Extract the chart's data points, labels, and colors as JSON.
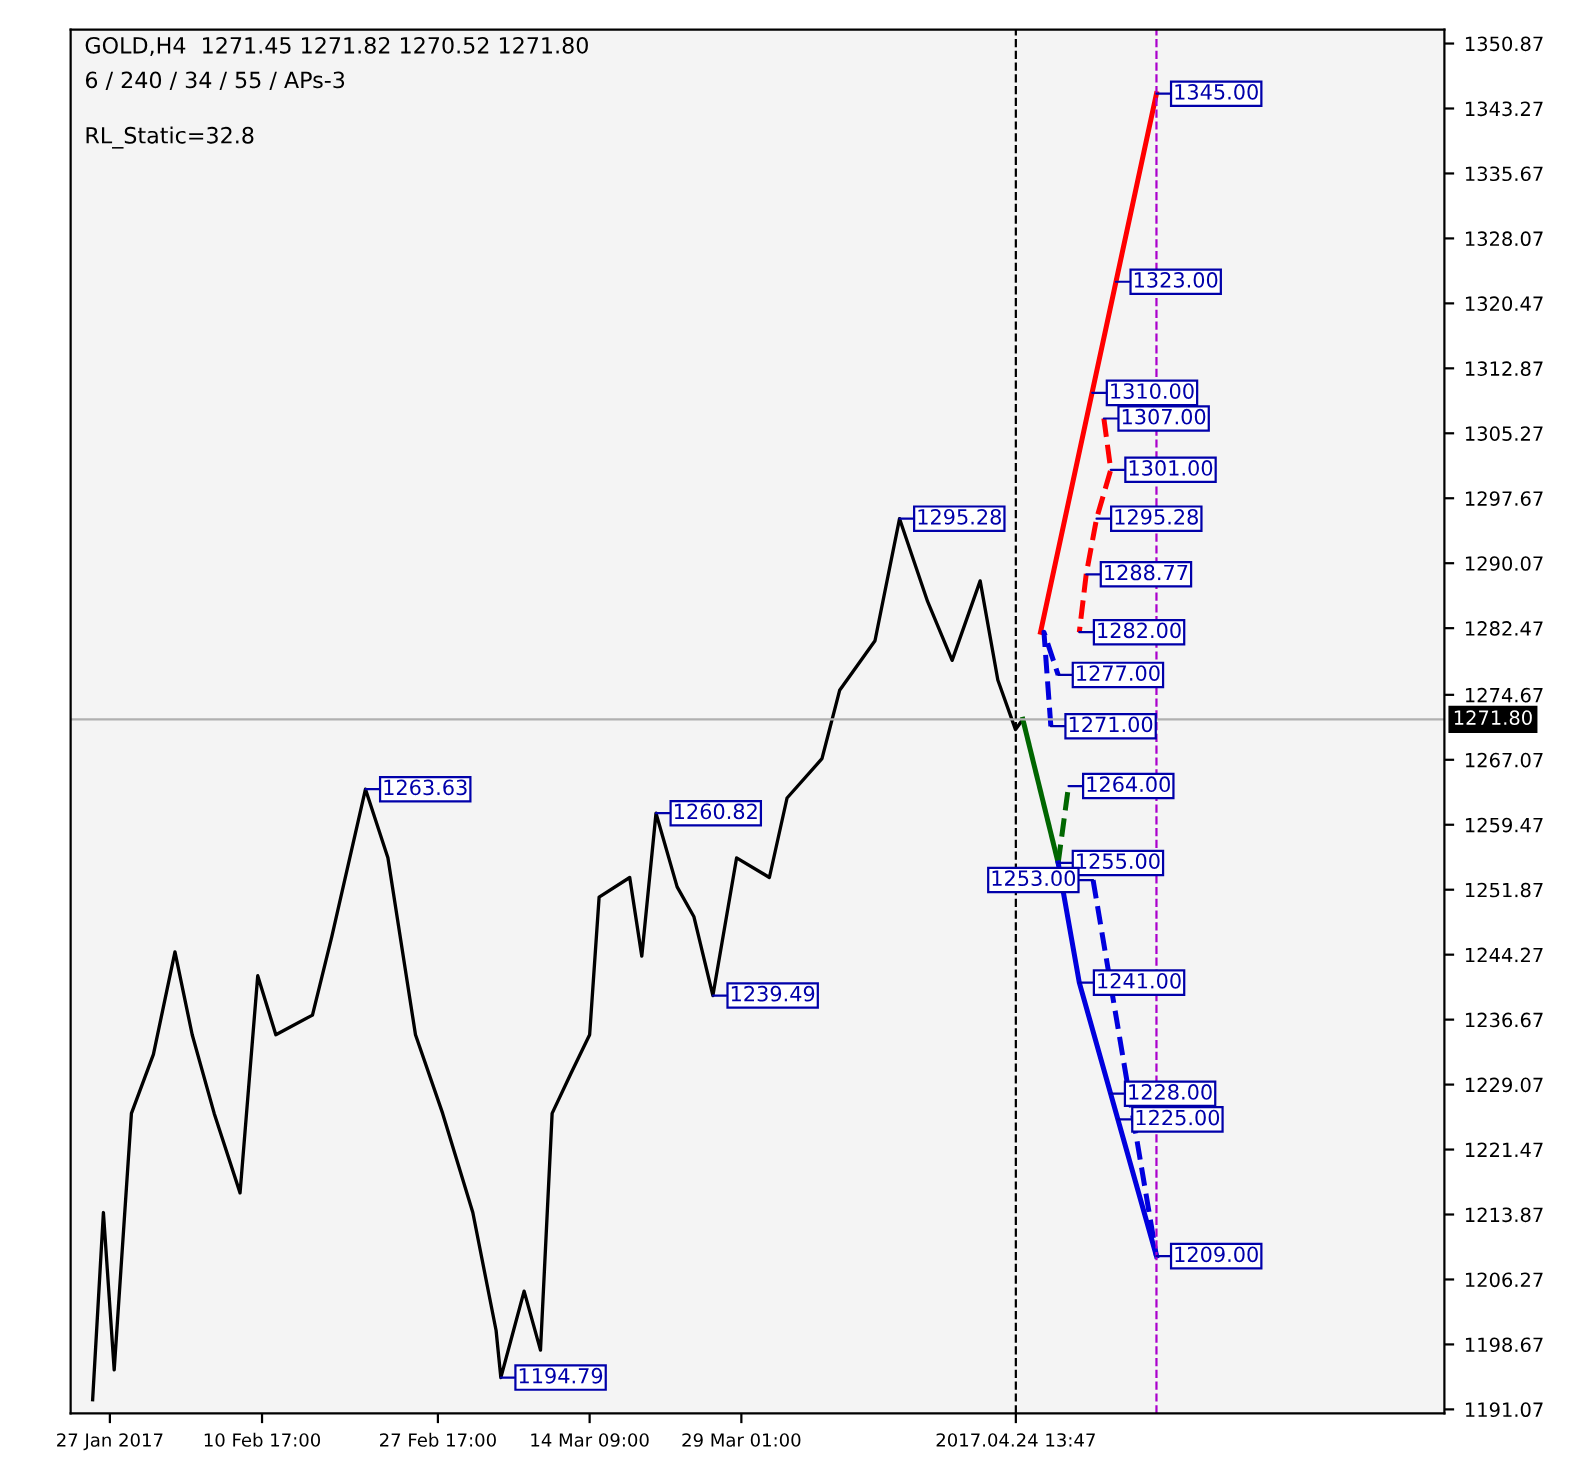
{
  "chart_data": {
    "type": "line",
    "title": "GOLD,H4  1271.45 1271.82 1270.52 1271.80",
    "subtitle": "6 / 240 / 34 / 55 / APs-3",
    "x": [
      "2017-01-25T08:00",
      "2017-01-26T09:00",
      "2017-01-27T10:00",
      "2017-01-29T02:00",
      "2017-01-31T05:00",
      "2017-02-02T07:00",
      "2017-02-03T23:00",
      "2017-02-06T02:00",
      "2017-02-08T14:00",
      "2017-02-10T07:00",
      "2017-02-12T01:00",
      "2017-02-15T14:00",
      "2017-02-17T11:00",
      "2017-02-20T17:00",
      "2017-02-22T21:00",
      "2017-02-25T13:00",
      "2017-02-28T04:00",
      "2017-03-03T02:00",
      "2017-03-05T08:00",
      "2017-03-05T19:00",
      "2017-03-08T01:00",
      "2017-03-09T15:00",
      "2017-03-10T18:00",
      "2017-03-12T13:00",
      "2017-03-14T09:00",
      "2017-03-15T07:00",
      "2017-03-18T06:00",
      "2017-03-19T10:00",
      "2017-03-20T19:00",
      "2017-03-22T20:00",
      "2017-03-24T11:00",
      "2017-03-26T07:00",
      "2017-03-28T14:00",
      "2017-03-31T18:00",
      "2017-04-02T11:00",
      "2017-04-05T20:00",
      "2017-04-07T13:00",
      "2017-04-10T23:00",
      "2017-04-13T08:00",
      "2017-04-16T01:00",
      "2017-04-18T10:00",
      "2017-04-21T03:00",
      "2017-04-22T20:00",
      "2017-04-24T13:00",
      "2017-04-25T06:00"
    ],
    "series": [
      {
        "color": "#000000",
        "values": [
          1192.2,
          1214.1,
          1195.7,
          1225.7,
          1232.6,
          1244.6,
          1234.9,
          1225.7,
          1216.4,
          1241.8,
          1234.9,
          1237.2,
          1246.4,
          1263.63,
          1255.6,
          1234.9,
          1225.7,
          1214.1,
          1200.3,
          1194.79,
          1204.9,
          1198.0,
          1225.7,
          1230.3,
          1234.9,
          1251.0,
          1253.3,
          1244.1,
          1260.82,
          1252.2,
          1248.7,
          1239.49,
          1255.6,
          1253.3,
          1262.6,
          1267.2,
          1275.2,
          1281.0,
          1295.28,
          1285.6,
          1278.7,
          1288.0,
          1276.4,
          1270.6,
          1271.8
        ]
      },
      {
        "color": "#ff0000",
        "x": [
          "2017-04-26T23:00",
          "2017-05-08T04:00"
        ],
        "values": [
          1282.0,
          1345.0
        ]
      },
      {
        "color": "#ff0000",
        "x": [
          "2017-05-03T02:00",
          "2017-05-03T18:00",
          "2017-05-02T09:00",
          "2017-05-01T09:00",
          "2017-04-30T17:00"
        ],
        "values": [
          1307.0,
          1301.0,
          1295.28,
          1288.77,
          1282.0
        ],
        "line_style": "dashed"
      },
      {
        "color": "#0000dd",
        "x": [
          "2017-04-27T23:00",
          "2017-04-27T07:00",
          "2017-04-28T16:00"
        ],
        "values": [
          1271.0,
          1282.0,
          1277.0
        ],
        "line_style": "dashed"
      },
      {
        "color": "#006600",
        "x": [
          "2017-04-25T06:00",
          "2017-04-28T16:00"
        ],
        "values": [
          1271.8,
          1255.0
        ]
      },
      {
        "color": "#006600",
        "x": [
          "2017-04-28T16:00",
          "2017-04-29T16:00"
        ],
        "values": [
          1255.0,
          1264.0
        ],
        "line_style": "dashed"
      },
      {
        "color": "#0000dd",
        "x": [
          "2017-04-28T16:00",
          "2017-04-30T17:00",
          "2017-05-08T04:00"
        ],
        "values": [
          1255.0,
          1241.0,
          1209.0
        ]
      },
      {
        "color": "#0000dd",
        "x": [
          "2017-05-02T01:00",
          "2017-05-08T04:00"
        ],
        "values": [
          1253.0,
          1209.0
        ],
        "line_style": "dashed"
      }
    ],
    "xlim": [
      "2017-01-23T05:00",
      "2017-06-05T00:00"
    ],
    "xticks": [
      {
        "value": "2017-01-27T00:00",
        "label": "27 Jan 2017"
      },
      {
        "value": "2017-02-10T17:00",
        "label": "10 Feb 17:00"
      },
      {
        "value": "2017-02-27T17:00",
        "label": "27 Feb 17:00"
      },
      {
        "value": "2017-03-14T09:00",
        "label": "14 Mar 09:00"
      },
      {
        "value": "2017-03-29T01:00",
        "label": "29 Mar 01:00"
      },
      {
        "value": "2017-04-24T13:47",
        "label": "2017.04.24 13:47"
      }
    ],
    "ylim": [
      1190.6,
      1352.5
    ],
    "yticks": [
      1191.07,
      1198.67,
      1206.27,
      1213.87,
      1221.47,
      1229.07,
      1236.67,
      1244.27,
      1251.87,
      1259.47,
      1267.07,
      1274.67,
      1282.47,
      1290.07,
      1297.67,
      1305.27,
      1312.87,
      1320.47,
      1328.07,
      1335.67,
      1343.27,
      1350.87
    ],
    "ref_lines": [
      {
        "axis": "y",
        "value": 1271.8,
        "label": "1271.80",
        "color": "#b0b0b0",
        "line_style": "solid"
      },
      {
        "axis": "x",
        "value": "2017-04-24T13:47",
        "color": "#000000",
        "line_style": "dashed"
      },
      {
        "axis": "x",
        "value": "2017-05-08T04:00",
        "color": "#aa00cc",
        "line_style": "dashed"
      }
    ],
    "annotations": [
      "RL_Static=32.8",
      {
        "text": "1345.00",
        "x": "2017-05-08T04:00",
        "y": 1345.0
      },
      {
        "text": "1323.00",
        "x": "2017-05-04T06:00",
        "y": 1323.0
      },
      {
        "text": "1310.00",
        "x": "2017-05-01T23:00",
        "y": 1310.0
      },
      {
        "text": "1307.00",
        "x": "2017-05-03T02:00",
        "y": 1307.0
      },
      {
        "text": "1301.00",
        "x": "2017-05-03T18:00",
        "y": 1301.0
      },
      {
        "text": "1295.28",
        "x": "2017-05-02T09:00",
        "y": 1295.28
      },
      {
        "text": "1288.77",
        "x": "2017-05-01T09:00",
        "y": 1288.77
      },
      {
        "text": "1282.00",
        "x": "2017-04-30T17:00",
        "y": 1282.0
      },
      {
        "text": "1277.00",
        "x": "2017-04-28T16:00",
        "y": 1277.0
      },
      {
        "text": "1271.00",
        "x": "2017-04-27T23:00",
        "y": 1271.0
      },
      {
        "text": "1264.00",
        "x": "2017-04-29T16:00",
        "y": 1264.0
      },
      {
        "text": "1255.00",
        "x": "2017-04-28T16:00",
        "y": 1255.0
      },
      {
        "text": "1253.00",
        "x": "2017-05-02T01:00",
        "y": 1253.0
      },
      {
        "text": "1241.00",
        "x": "2017-04-30T17:00",
        "y": 1241.0
      },
      {
        "text": "1228.00",
        "x": "2017-05-03T17:00",
        "y": 1228.0
      },
      {
        "text": "1225.00",
        "x": "2017-05-04T10:00",
        "y": 1225.0
      },
      {
        "text": "1209.00",
        "x": "2017-05-08T04:00",
        "y": 1209.0
      },
      {
        "text": "1295.28",
        "x": "2017-04-13T08:00",
        "y": 1295.28
      },
      {
        "text": "1263.63",
        "x": "2017-02-20T17:00",
        "y": 1263.63
      },
      {
        "text": "1260.82",
        "x": "2017-03-20T19:00",
        "y": 1260.82
      },
      {
        "text": "1239.49",
        "x": "2017-03-26T07:00",
        "y": 1239.49
      },
      {
        "text": "1194.79",
        "x": "2017-03-05T19:00",
        "y": 1194.79
      }
    ],
    "grid": false,
    "legend": false,
    "line_style": "solid",
    "marker": "none"
  }
}
